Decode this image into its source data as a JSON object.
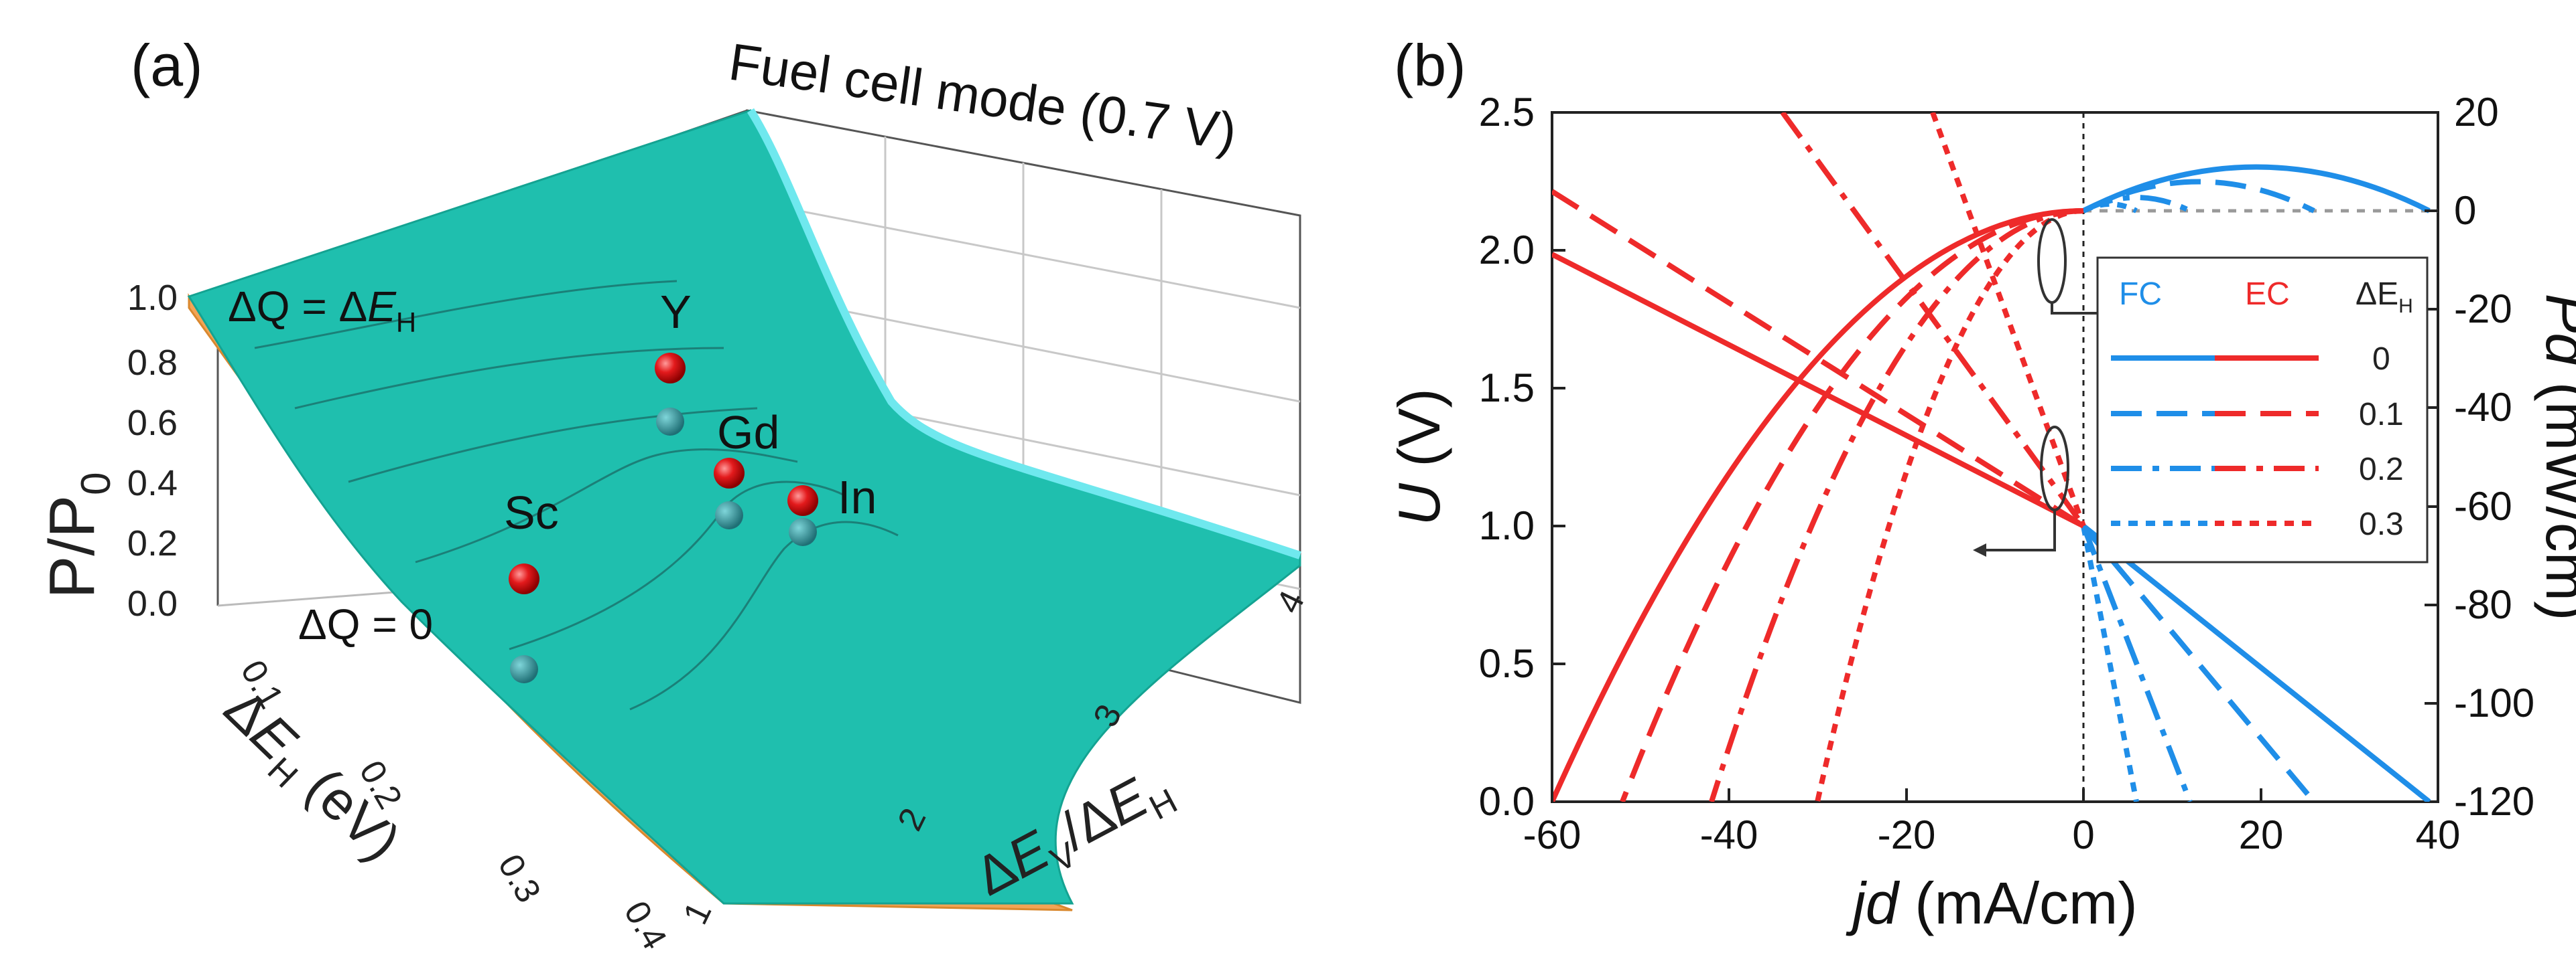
{
  "chart_data": [
    {
      "type": "surface3d",
      "panel_label": "(a)",
      "title": "Fuel cell mode (0.7 V)",
      "zlabel_main": "P/P",
      "zlabel_sub": "0",
      "z_ticks": [
        "0.0",
        "0.2",
        "0.4",
        "0.6",
        "0.8",
        "1.0"
      ],
      "zlim": [
        0,
        1
      ],
      "x_ticks": [
        "0.1",
        "0.2",
        "0.3",
        "0.4"
      ],
      "xlabel": {
        "delta": "Δ",
        "var": "E",
        "sub": "H",
        "unit": " (eV)"
      },
      "y_ticks": [
        "1",
        "2",
        "3",
        "4"
      ],
      "ylabel": {
        "delta1": "Δ",
        "var1": "E",
        "sub1": "V",
        "slash": "/",
        "delta2": "Δ",
        "var2": "E",
        "sub2": "H"
      },
      "annotations": {
        "top": {
          "lhs": "ΔQ = Δ",
          "var": "E",
          "sub": "H"
        },
        "bottom": "ΔQ = 0"
      },
      "colors": {
        "surface_top": "#1fbfae",
        "surface_side": "#f2a455",
        "edge_cyan": "#6fe8ee",
        "ball_red": "#e31a1c",
        "ball_teal": "#2a8f96"
      },
      "points": [
        {
          "label": "Sc",
          "dEH": 0.25,
          "ratio": 1.3,
          "PP0": 0.55
        },
        {
          "label": "Y",
          "dEH": 0.17,
          "ratio": 2.2,
          "PP0": 0.78
        },
        {
          "label": "Gd",
          "dEH": 0.17,
          "ratio": 2.6,
          "PP0": 0.6
        },
        {
          "label": "In",
          "dEH": 0.15,
          "ratio": 2.9,
          "PP0": 0.45
        }
      ]
    },
    {
      "type": "line",
      "panel_label": "(b)",
      "xlabel": {
        "var": "jd",
        "unit": " (mA/cm)"
      },
      "ylabel": {
        "var": "U",
        "unit": " (V)"
      },
      "y2label": {
        "var": "Pd",
        "unit": " (mW/cm)"
      },
      "xlim": [
        -60,
        40
      ],
      "ylim": [
        0,
        2.5
      ],
      "y2lim": [
        -120,
        20
      ],
      "x_ticks": [
        "-60",
        "-40",
        "-20",
        "0",
        "20",
        "40"
      ],
      "y_ticks": [
        "0.0",
        "0.5",
        "1.0",
        "1.5",
        "2.0",
        "2.5"
      ],
      "y2_ticks": [
        "-120",
        "-100",
        "-80",
        "-60",
        "-40",
        "-20",
        "0",
        "20"
      ],
      "legend": {
        "fc": "FC",
        "ec": "EC",
        "dE": "ΔE",
        "dE_sub": "H",
        "rows": [
          "0",
          "0.1",
          "0.2",
          "0.3"
        ]
      },
      "colors": {
        "fc": "#1f8ee8",
        "ec": "#ee2a2a"
      },
      "series": [
        {
          "name": "U FC ΔEH=0",
          "x": [
            0,
            39
          ],
          "y": [
            1.0,
            0.0
          ]
        },
        {
          "name": "U EC ΔEH=0",
          "x": [
            -60,
            0
          ],
          "y": [
            1.97,
            1.0
          ]
        },
        {
          "name": "U FC ΔEH=0.1",
          "x": [
            0,
            26
          ],
          "y": [
            1.0,
            0.0
          ]
        },
        {
          "name": "U EC ΔEH=0.1",
          "x": [
            -60,
            0
          ],
          "y": [
            2.2,
            1.0
          ]
        },
        {
          "name": "U FC ΔEH=0.2",
          "x": [
            0,
            12
          ],
          "y": [
            1.0,
            0.0
          ]
        },
        {
          "name": "U EC ΔEH=0.2",
          "x": [
            -34,
            0
          ],
          "y": [
            2.5,
            1.0
          ]
        },
        {
          "name": "U FC ΔEH=0.3",
          "x": [
            0,
            6
          ],
          "y": [
            1.0,
            0.0
          ]
        },
        {
          "name": "U EC ΔEH=0.3",
          "x": [
            -17,
            0
          ],
          "y": [
            2.5,
            1.0
          ]
        },
        {
          "name": "Pd FC ΔEH=0",
          "x": [
            0,
            39
          ],
          "y_peak": 9.8
        },
        {
          "name": "Pd FC ΔEH=0.1",
          "x": [
            0,
            26
          ],
          "y_peak": 6.5
        },
        {
          "name": "Pd FC ΔEH=0.2",
          "x": [
            0,
            12
          ],
          "y_peak": 3.0
        },
        {
          "name": "Pd FC ΔEH=0.3",
          "x": [
            0,
            6
          ],
          "y_peak": 1.5
        },
        {
          "name": "Pd EC ΔEH=0",
          "x": [
            -60,
            0
          ],
          "y_end": -120
        },
        {
          "name": "Pd EC ΔEH=0.1",
          "x": [
            -52,
            0
          ],
          "y_end": -120
        },
        {
          "name": "Pd EC ΔEH=0.2",
          "x": [
            -42,
            0
          ],
          "y_end": -120
        },
        {
          "name": "Pd EC ΔEH=0.3",
          "x": [
            -30,
            0
          ],
          "y_end": -120
        }
      ]
    }
  ]
}
